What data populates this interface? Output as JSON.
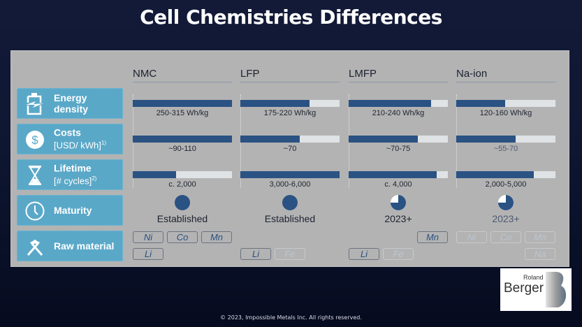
{
  "title": "Cell Chemistries Differences",
  "colors": {
    "accent_fill": "#2a5283",
    "bar_track": "#dfe3e6",
    "label_bg": "#5aa8c8"
  },
  "rows": [
    {
      "icon": "battery-bolt-icon",
      "label_bold": "Energy density",
      "label_line1": "Energy",
      "label_line2": "density"
    },
    {
      "icon": "dollar-icon",
      "label_line1": "Costs",
      "label_line2": "[USD/ kWh]",
      "footnote": "1)"
    },
    {
      "icon": "hourglass-icon",
      "label_line1": "Lifetime",
      "label_line2": "[# cycles]",
      "footnote": "2)"
    },
    {
      "icon": "clock-icon",
      "label_line1": "Maturity"
    },
    {
      "icon": "hammers-icon",
      "label_line1": "Raw material"
    }
  ],
  "columns": [
    {
      "name": "NMC",
      "energy": {
        "text": "250-315 Wh/kg",
        "fill": 1.0
      },
      "costs": {
        "text": "~90-110",
        "fill": 1.0
      },
      "lifetime": {
        "text": "c. 2,000",
        "fill": 0.44
      },
      "maturity": {
        "text": "Established",
        "fill": 1.0
      },
      "materials_row1": [
        {
          "label": "Ni",
          "active": true
        },
        {
          "label": "Co",
          "active": true
        },
        {
          "label": "Mn",
          "active": true
        }
      ],
      "materials_row2": [
        {
          "label": "Li",
          "active": true
        }
      ]
    },
    {
      "name": "LFP",
      "energy": {
        "text": "175-220 Wh/kg",
        "fill": 0.7
      },
      "costs": {
        "text": "~70",
        "fill": 0.6
      },
      "lifetime": {
        "text": "3,000-6,000",
        "fill": 1.0
      },
      "maturity": {
        "text": "Established",
        "fill": 1.0
      },
      "materials_row1": [],
      "materials_row2": [
        {
          "label": "Li",
          "active": true
        },
        {
          "label": "Fe",
          "active": false
        }
      ]
    },
    {
      "name": "LMFP",
      "energy": {
        "text": "210-240 Wh/kg",
        "fill": 0.83
      },
      "costs": {
        "text": "~70-75",
        "fill": 0.7
      },
      "lifetime": {
        "text": "c. 4,000",
        "fill": 0.89
      },
      "maturity": {
        "text": "2023+",
        "fill": 0.75
      },
      "materials_row1": [
        {
          "label": "Mn",
          "active": true
        }
      ],
      "materials_row2": [
        {
          "label": "Li",
          "active": true
        },
        {
          "label": "Fe",
          "active": false
        }
      ]
    },
    {
      "name": "Na-ion",
      "energy": {
        "text": "120-160 Wh/kg",
        "fill": 0.49
      },
      "costs": {
        "text": "~55-70",
        "fill": 0.6
      },
      "lifetime": {
        "text": "2,000-5,000",
        "fill": 0.78
      },
      "maturity": {
        "text": "2023+",
        "fill": 0.75
      },
      "materials_row1": [
        {
          "label": "Ni",
          "active": false
        },
        {
          "label": "Co",
          "active": false
        },
        {
          "label": "Mn",
          "active": false
        }
      ],
      "materials_row2": [
        {
          "label": "Na",
          "active": false
        }
      ]
    }
  ],
  "logo": {
    "line1": "Roland",
    "line2": "Berger"
  },
  "footer": "© 2023, Impossible Metals Inc.  All rights reserved."
}
